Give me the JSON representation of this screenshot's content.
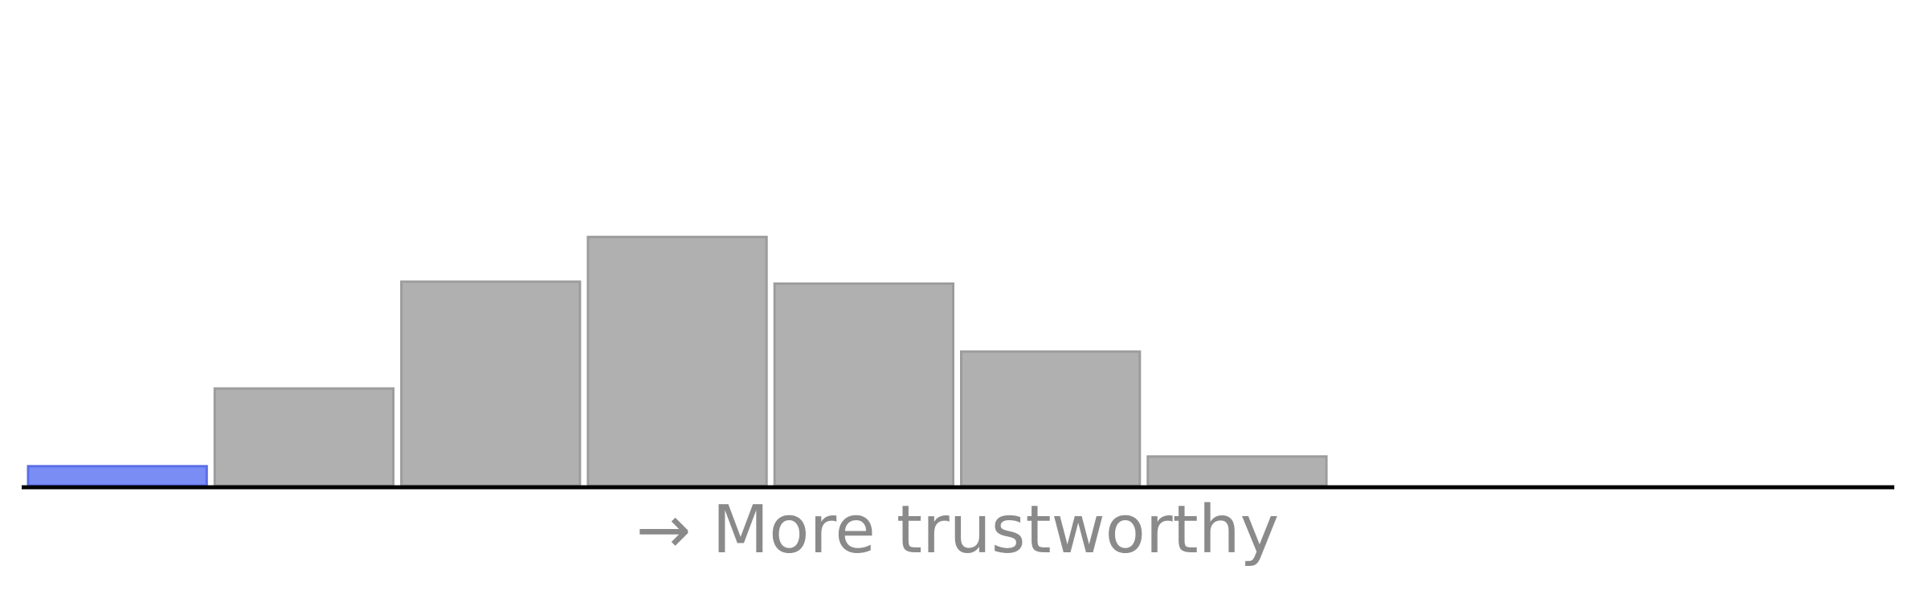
{
  "chart_data": {
    "type": "bar",
    "xlabel": "→ More trustworthy",
    "ylabel": "",
    "title": "",
    "grid": false,
    "bins": 10,
    "values": [
      1,
      5,
      10.5,
      12.8,
      10.4,
      6.9,
      1.5,
      0,
      0,
      0
    ],
    "highlight_index": 0,
    "ylim": [
      0,
      25
    ],
    "colors": {
      "bar_fill": "#b0b0b0",
      "bar_stroke": "#9c9c9c",
      "highlight_fill": "#7a8df5",
      "highlight_stroke": "#5a6ee8",
      "axis": "#000000",
      "label": "#8a8a8a"
    }
  }
}
